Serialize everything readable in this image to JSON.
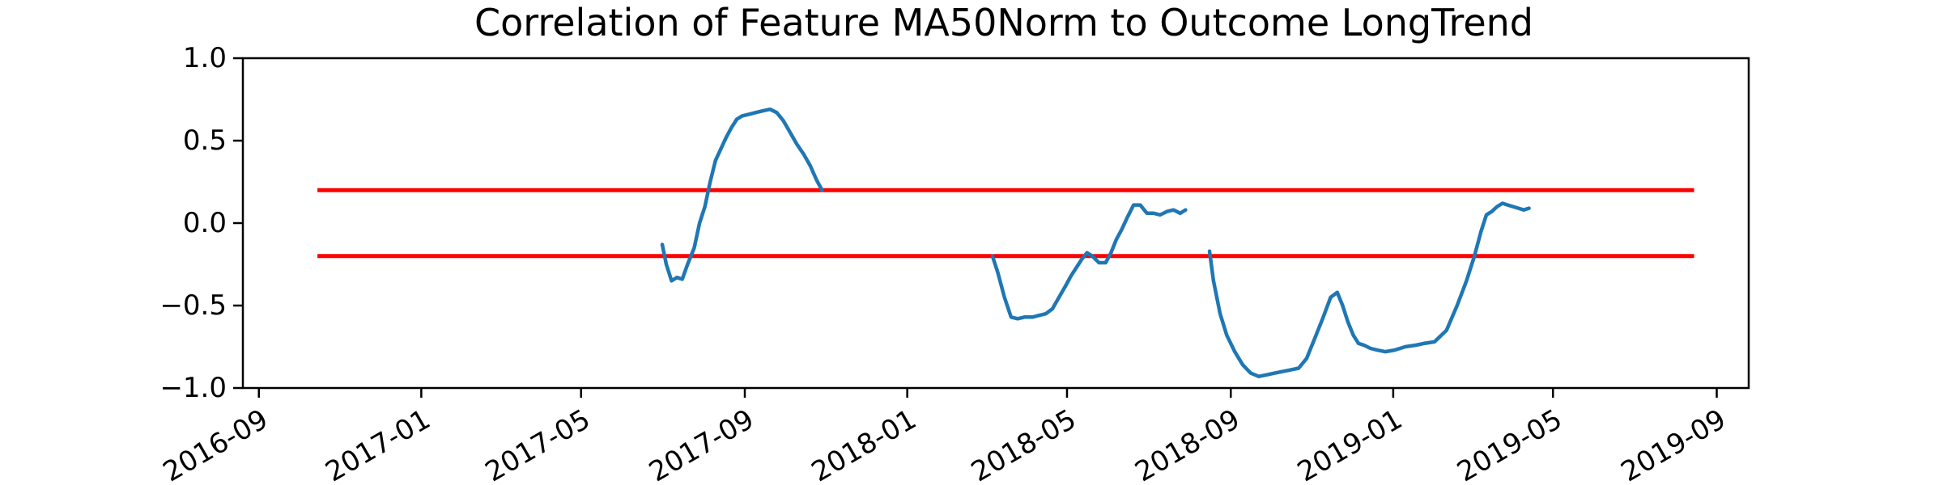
{
  "chart_data": {
    "type": "line",
    "title": "Correlation of Feature MA50Norm to Outcome LongTrend",
    "xlabel": "",
    "ylabel": "",
    "xlim": [
      "2016-08-20",
      "2019-09-25"
    ],
    "ylim": [
      -1.0,
      1.0
    ],
    "x_ticks": [
      "2016-09",
      "2017-01",
      "2017-05",
      "2017-09",
      "2018-01",
      "2018-05",
      "2018-09",
      "2019-01",
      "2019-05",
      "2019-09"
    ],
    "y_ticks": [
      "1.0",
      "0.5",
      "0.0",
      "−0.5",
      "−1.0"
    ],
    "grid": false,
    "colors": {
      "series": "#1f77b4",
      "reference": "#ff0000"
    },
    "reference_lines": [
      {
        "y": 0.2,
        "x_start": "2016-10-15",
        "x_end": "2019-08-15"
      },
      {
        "y": -0.2,
        "x_start": "2016-10-15",
        "x_end": "2019-08-15"
      }
    ],
    "series": [
      {
        "segments": [
          {
            "x": [
              "2017-07-01",
              "2017-07-04",
              "2017-07-08",
              "2017-07-12",
              "2017-07-16",
              "2017-07-20",
              "2017-07-25",
              "2017-07-29",
              "2017-08-02",
              "2017-08-06",
              "2017-08-10",
              "2017-08-14",
              "2017-08-18",
              "2017-08-22",
              "2017-08-26",
              "2017-08-30",
              "2017-09-04",
              "2017-09-09",
              "2017-09-14",
              "2017-09-20",
              "2017-09-25",
              "2017-09-30",
              "2017-10-05",
              "2017-10-10",
              "2017-10-15",
              "2017-10-20",
              "2017-10-25",
              "2017-10-29"
            ],
            "y": [
              -0.13,
              -0.25,
              -0.35,
              -0.33,
              -0.34,
              -0.25,
              -0.15,
              0.0,
              0.1,
              0.25,
              0.38,
              0.45,
              0.52,
              0.58,
              0.63,
              0.65,
              0.66,
              0.67,
              0.68,
              0.69,
              0.67,
              0.62,
              0.55,
              0.48,
              0.42,
              0.35,
              0.26,
              0.2
            ]
          },
          {
            "x": [
              "2018-03-06",
              "2018-03-10",
              "2018-03-15",
              "2018-03-20",
              "2018-03-25",
              "2018-03-30",
              "2018-04-05",
              "2018-04-10",
              "2018-04-15",
              "2018-04-20",
              "2018-04-25",
              "2018-04-30",
              "2018-05-04",
              "2018-05-08",
              "2018-05-12",
              "2018-05-16",
              "2018-05-20",
              "2018-05-25",
              "2018-05-30",
              "2018-06-03",
              "2018-06-07",
              "2018-06-11",
              "2018-06-15",
              "2018-06-20",
              "2018-06-25",
              "2018-06-30",
              "2018-07-05",
              "2018-07-10",
              "2018-07-15",
              "2018-07-20",
              "2018-07-25",
              "2018-07-29"
            ],
            "y": [
              -0.2,
              -0.3,
              -0.45,
              -0.57,
              -0.58,
              -0.57,
              -0.57,
              -0.56,
              -0.55,
              -0.52,
              -0.45,
              -0.38,
              -0.32,
              -0.27,
              -0.22,
              -0.18,
              -0.2,
              -0.24,
              -0.24,
              -0.18,
              -0.1,
              -0.04,
              0.03,
              0.11,
              0.11,
              0.06,
              0.06,
              0.05,
              0.07,
              0.08,
              0.06,
              0.08
            ]
          },
          {
            "x": [
              "2018-08-16",
              "2018-08-19",
              "2018-08-24",
              "2018-08-29",
              "2018-09-04",
              "2018-09-10",
              "2018-09-16",
              "2018-09-22",
              "2018-09-28",
              "2018-10-04",
              "2018-10-10",
              "2018-10-16",
              "2018-10-22",
              "2018-10-28",
              "2018-11-03",
              "2018-11-09",
              "2018-11-15",
              "2018-11-20",
              "2018-11-24",
              "2018-11-28",
              "2018-12-02",
              "2018-12-06",
              "2018-12-10",
              "2018-12-15",
              "2018-12-20",
              "2018-12-26",
              "2019-01-02",
              "2019-01-10",
              "2019-01-18",
              "2019-01-24",
              "2019-02-01",
              "2019-02-10",
              "2019-02-18",
              "2019-02-25",
              "2019-03-03",
              "2019-03-08",
              "2019-03-12",
              "2019-03-16",
              "2019-03-20",
              "2019-03-24",
              "2019-03-28",
              "2019-04-01",
              "2019-04-05",
              "2019-04-09",
              "2019-04-13"
            ],
            "y": [
              -0.17,
              -0.35,
              -0.55,
              -0.68,
              -0.78,
              -0.86,
              -0.91,
              -0.93,
              -0.92,
              -0.91,
              -0.9,
              -0.89,
              -0.88,
              -0.82,
              -0.7,
              -0.58,
              -0.45,
              -0.42,
              -0.5,
              -0.6,
              -0.68,
              -0.73,
              -0.74,
              -0.76,
              -0.77,
              -0.78,
              -0.77,
              -0.75,
              -0.74,
              -0.73,
              -0.72,
              -0.65,
              -0.5,
              -0.35,
              -0.2,
              -0.05,
              0.05,
              0.07,
              0.1,
              0.12,
              0.11,
              0.1,
              0.09,
              0.08,
              0.09
            ]
          }
        ]
      }
    ]
  }
}
